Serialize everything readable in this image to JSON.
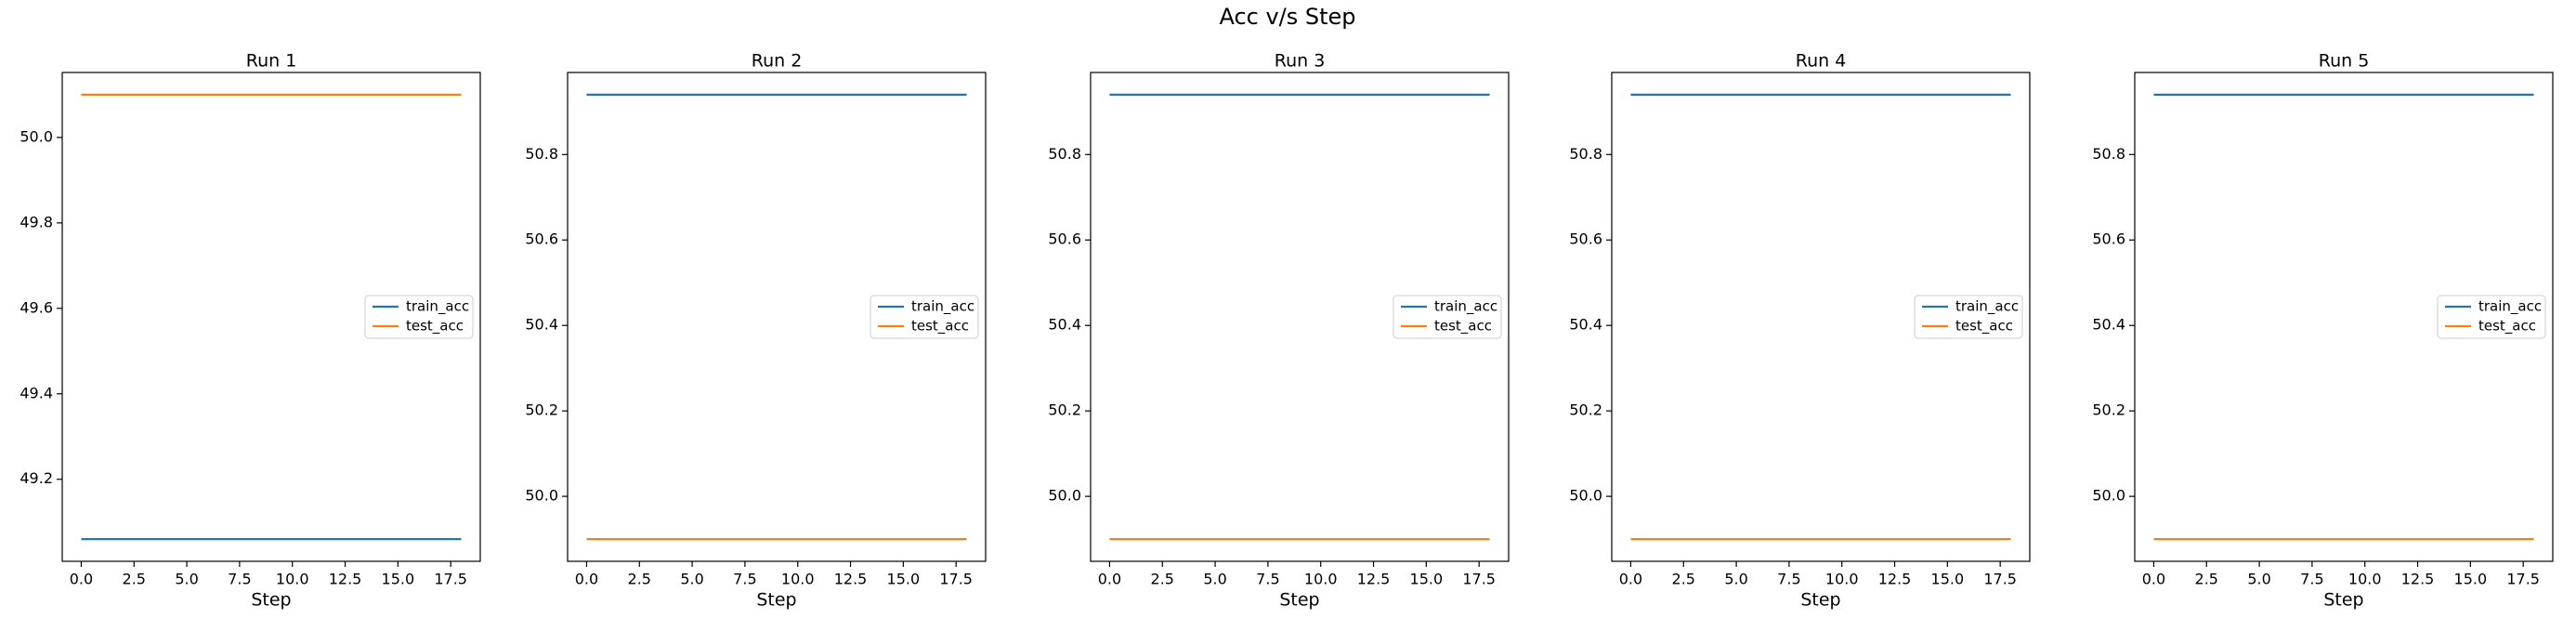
{
  "title": "Acc v/s Step",
  "chart_data": [
    {
      "type": "line",
      "title": "Run 1",
      "x_label": "Step",
      "x": [
        0,
        1,
        2,
        3,
        4,
        5,
        6,
        7,
        8,
        9,
        10,
        11,
        12,
        13,
        14,
        15,
        16,
        17,
        18
      ],
      "series": [
        {
          "name": "train_acc",
          "color": "#1f77b4",
          "values": [
            49.06,
            49.06,
            49.06,
            49.06,
            49.06,
            49.06,
            49.06,
            49.06,
            49.06,
            49.06,
            49.06,
            49.06,
            49.06,
            49.06,
            49.06,
            49.06,
            49.06,
            49.06,
            49.06
          ]
        },
        {
          "name": "test_acc",
          "color": "#ff7f0e",
          "values": [
            50.1,
            50.1,
            50.1,
            50.1,
            50.1,
            50.1,
            50.1,
            50.1,
            50.1,
            50.1,
            50.1,
            50.1,
            50.1,
            50.1,
            50.1,
            50.1,
            50.1,
            50.1,
            50.1
          ]
        }
      ],
      "xlim": [
        -0.9,
        18.9
      ],
      "xticks": [
        {
          "value": 0,
          "label": "0.0"
        },
        2.5,
        {
          "value": 5,
          "label": "5.0"
        },
        7.5,
        {
          "value": 10,
          "label": "10.0"
        },
        12.5,
        {
          "value": 15,
          "label": "15.0"
        },
        17.5
      ],
      "ylim": [
        49.008,
        50.152
      ],
      "yticks": [
        49.2,
        49.4,
        49.6,
        49.8,
        {
          "value": 50,
          "label": "50.0"
        }
      ],
      "legend": "center right"
    },
    {
      "type": "line",
      "title": "Run 2",
      "x_label": "Step",
      "x": [
        0,
        1,
        2,
        3,
        4,
        5,
        6,
        7,
        8,
        9,
        10,
        11,
        12,
        13,
        14,
        15,
        16,
        17,
        18
      ],
      "series": [
        {
          "name": "train_acc",
          "color": "#1f77b4",
          "values": [
            50.94,
            50.94,
            50.94,
            50.94,
            50.94,
            50.94,
            50.94,
            50.94,
            50.94,
            50.94,
            50.94,
            50.94,
            50.94,
            50.94,
            50.94,
            50.94,
            50.94,
            50.94,
            50.94
          ]
        },
        {
          "name": "test_acc",
          "color": "#ff7f0e",
          "values": [
            49.9,
            49.9,
            49.9,
            49.9,
            49.9,
            49.9,
            49.9,
            49.9,
            49.9,
            49.9,
            49.9,
            49.9,
            49.9,
            49.9,
            49.9,
            49.9,
            49.9,
            49.9,
            49.9
          ]
        }
      ],
      "xlim": [
        -0.9,
        18.9
      ],
      "xticks": [
        {
          "value": 0,
          "label": "0.0"
        },
        2.5,
        {
          "value": 5,
          "label": "5.0"
        },
        7.5,
        {
          "value": 10,
          "label": "10.0"
        },
        12.5,
        {
          "value": 15,
          "label": "15.0"
        },
        17.5
      ],
      "ylim": [
        49.848,
        50.992
      ],
      "yticks": [
        {
          "value": 50,
          "label": "50.0"
        },
        50.2,
        50.4,
        50.6,
        50.8
      ],
      "legend": "center right"
    },
    {
      "type": "line",
      "title": "Run 3",
      "x_label": "Step",
      "x": [
        0,
        1,
        2,
        3,
        4,
        5,
        6,
        7,
        8,
        9,
        10,
        11,
        12,
        13,
        14,
        15,
        16,
        17,
        18
      ],
      "series": [
        {
          "name": "train_acc",
          "color": "#1f77b4",
          "values": [
            50.94,
            50.94,
            50.94,
            50.94,
            50.94,
            50.94,
            50.94,
            50.94,
            50.94,
            50.94,
            50.94,
            50.94,
            50.94,
            50.94,
            50.94,
            50.94,
            50.94,
            50.94,
            50.94
          ]
        },
        {
          "name": "test_acc",
          "color": "#ff7f0e",
          "values": [
            49.9,
            49.9,
            49.9,
            49.9,
            49.9,
            49.9,
            49.9,
            49.9,
            49.9,
            49.9,
            49.9,
            49.9,
            49.9,
            49.9,
            49.9,
            49.9,
            49.9,
            49.9,
            49.9
          ]
        }
      ],
      "xlim": [
        -0.9,
        18.9
      ],
      "xticks": [
        {
          "value": 0,
          "label": "0.0"
        },
        2.5,
        {
          "value": 5,
          "label": "5.0"
        },
        7.5,
        {
          "value": 10,
          "label": "10.0"
        },
        12.5,
        {
          "value": 15,
          "label": "15.0"
        },
        17.5
      ],
      "ylim": [
        49.848,
        50.992
      ],
      "yticks": [
        {
          "value": 50,
          "label": "50.0"
        },
        50.2,
        50.4,
        50.6,
        50.8
      ],
      "legend": "center right"
    },
    {
      "type": "line",
      "title": "Run 4",
      "x_label": "Step",
      "x": [
        0,
        1,
        2,
        3,
        4,
        5,
        6,
        7,
        8,
        9,
        10,
        11,
        12,
        13,
        14,
        15,
        16,
        17,
        18
      ],
      "series": [
        {
          "name": "train_acc",
          "color": "#1f77b4",
          "values": [
            50.94,
            50.94,
            50.94,
            50.94,
            50.94,
            50.94,
            50.94,
            50.94,
            50.94,
            50.94,
            50.94,
            50.94,
            50.94,
            50.94,
            50.94,
            50.94,
            50.94,
            50.94,
            50.94
          ]
        },
        {
          "name": "test_acc",
          "color": "#ff7f0e",
          "values": [
            49.9,
            49.9,
            49.9,
            49.9,
            49.9,
            49.9,
            49.9,
            49.9,
            49.9,
            49.9,
            49.9,
            49.9,
            49.9,
            49.9,
            49.9,
            49.9,
            49.9,
            49.9,
            49.9
          ]
        }
      ],
      "xlim": [
        -0.9,
        18.9
      ],
      "xticks": [
        {
          "value": 0,
          "label": "0.0"
        },
        2.5,
        {
          "value": 5,
          "label": "5.0"
        },
        7.5,
        {
          "value": 10,
          "label": "10.0"
        },
        12.5,
        {
          "value": 15,
          "label": "15.0"
        },
        17.5
      ],
      "ylim": [
        49.848,
        50.992
      ],
      "yticks": [
        {
          "value": 50,
          "label": "50.0"
        },
        50.2,
        50.4,
        50.6,
        50.8
      ],
      "legend": "center right"
    },
    {
      "type": "line",
      "title": "Run 5",
      "x_label": "Step",
      "x": [
        0,
        1,
        2,
        3,
        4,
        5,
        6,
        7,
        8,
        9,
        10,
        11,
        12,
        13,
        14,
        15,
        16,
        17,
        18
      ],
      "series": [
        {
          "name": "train_acc",
          "color": "#1f77b4",
          "values": [
            50.94,
            50.94,
            50.94,
            50.94,
            50.94,
            50.94,
            50.94,
            50.94,
            50.94,
            50.94,
            50.94,
            50.94,
            50.94,
            50.94,
            50.94,
            50.94,
            50.94,
            50.94,
            50.94
          ]
        },
        {
          "name": "test_acc",
          "color": "#ff7f0e",
          "values": [
            49.9,
            49.9,
            49.9,
            49.9,
            49.9,
            49.9,
            49.9,
            49.9,
            49.9,
            49.9,
            49.9,
            49.9,
            49.9,
            49.9,
            49.9,
            49.9,
            49.9,
            49.9,
            49.9
          ]
        }
      ],
      "xlim": [
        -0.9,
        18.9
      ],
      "xticks": [
        {
          "value": 0,
          "label": "0.0"
        },
        2.5,
        {
          "value": 5,
          "label": "5.0"
        },
        7.5,
        {
          "value": 10,
          "label": "10.0"
        },
        12.5,
        {
          "value": 15,
          "label": "15.0"
        },
        17.5
      ],
      "ylim": [
        49.848,
        50.992
      ],
      "yticks": [
        {
          "value": 50,
          "label": "50.0"
        },
        50.2,
        50.4,
        50.6,
        50.8
      ],
      "legend": "center right"
    }
  ]
}
